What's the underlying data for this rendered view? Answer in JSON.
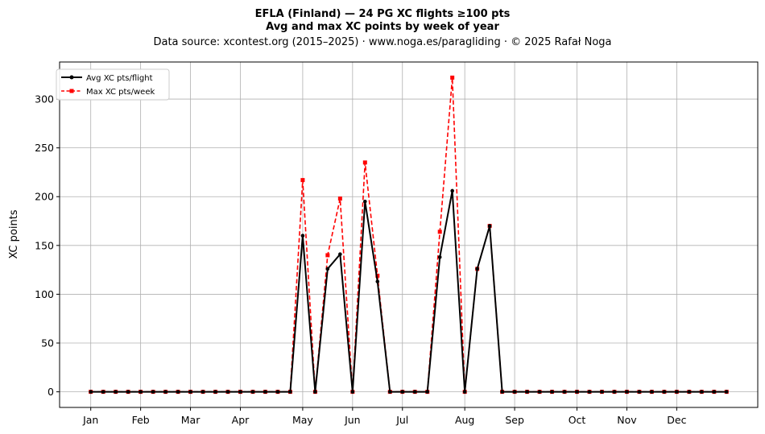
{
  "title_line1": "EFLA (Finland)  —  24 PG XC flights ≥100 pts",
  "title_line2": "Avg and max XC points by week of year",
  "subtitle": "Data source: xcontest.org (2015–2025)  ·  www.noga.es/paragliding  ·  © 2025 Rafał Noga",
  "chart_data": {
    "type": "line",
    "ylabel": "XC points",
    "xlabel": "",
    "x_ticks": [
      {
        "label": "Jan",
        "week": 1
      },
      {
        "label": "Feb",
        "week": 5
      },
      {
        "label": "Mar",
        "week": 9
      },
      {
        "label": "Apr",
        "week": 13
      },
      {
        "label": "May",
        "week": 18
      },
      {
        "label": "Jun",
        "week": 22
      },
      {
        "label": "Jul",
        "week": 26
      },
      {
        "label": "Aug",
        "week": 31
      },
      {
        "label": "Sep",
        "week": 35
      },
      {
        "label": "Oct",
        "week": 40
      },
      {
        "label": "Nov",
        "week": 44
      },
      {
        "label": "Dec",
        "week": 48
      }
    ],
    "y_ticks": [
      0,
      50,
      100,
      150,
      200,
      250,
      300
    ],
    "xlim": [
      -1.5,
      54.5
    ],
    "ylim": [
      -16,
      338
    ],
    "grid": true,
    "legend_position": "top-left",
    "x": [
      1,
      2,
      3,
      4,
      5,
      6,
      7,
      8,
      9,
      10,
      11,
      12,
      13,
      14,
      15,
      16,
      17,
      18,
      19,
      20,
      21,
      22,
      23,
      24,
      25,
      26,
      27,
      28,
      29,
      30,
      31,
      32,
      33,
      34,
      35,
      36,
      37,
      38,
      39,
      40,
      41,
      42,
      43,
      44,
      45,
      46,
      47,
      48,
      49,
      50,
      51,
      52
    ],
    "series": [
      {
        "name": "Avg XC pts/flight",
        "color": "#000000",
        "style": "solid-circle",
        "values": [
          0,
          0,
          0,
          0,
          0,
          0,
          0,
          0,
          0,
          0,
          0,
          0,
          0,
          0,
          0,
          0,
          0,
          160,
          0,
          126,
          141,
          0,
          195,
          113,
          0,
          0,
          0,
          0,
          138,
          206,
          0,
          126,
          170,
          0,
          0,
          0,
          0,
          0,
          0,
          0,
          0,
          0,
          0,
          0,
          0,
          0,
          0,
          0,
          0,
          0,
          0,
          0
        ]
      },
      {
        "name": "Max XC pts/week",
        "color": "#ff0000",
        "style": "dashed-square",
        "values": [
          0,
          0,
          0,
          0,
          0,
          0,
          0,
          0,
          0,
          0,
          0,
          0,
          0,
          0,
          0,
          0,
          0,
          217,
          0,
          140,
          198,
          0,
          235,
          119,
          0,
          0,
          0,
          0,
          164,
          322,
          0,
          126,
          170,
          0,
          0,
          0,
          0,
          0,
          0,
          0,
          0,
          0,
          0,
          0,
          0,
          0,
          0,
          0,
          0,
          0,
          0,
          0
        ]
      }
    ]
  }
}
